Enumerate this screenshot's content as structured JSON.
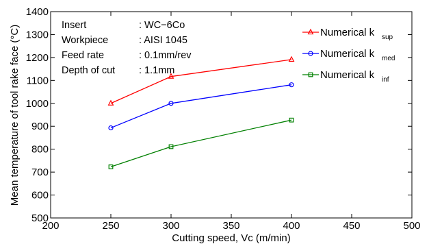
{
  "chart_data": {
    "type": "line",
    "title": "",
    "xlabel": "Cutting speed, Vc (m/min)",
    "ylabel": "Mean temperature of tool rake face (°C)",
    "xlim": [
      200,
      500
    ],
    "ylim": [
      500,
      1400
    ],
    "x_ticks": [
      200,
      250,
      300,
      350,
      400,
      450,
      500
    ],
    "y_ticks": [
      500,
      600,
      700,
      800,
      900,
      1000,
      1100,
      1200,
      1300,
      1400
    ],
    "grid": false,
    "legend_position": "top-right",
    "x": [
      250,
      300,
      400
    ],
    "series": [
      {
        "name_main": "Numerical k",
        "name_sub": "sup",
        "color": "#ff0000",
        "marker": "triangle",
        "values": [
          1000,
          1117,
          1191
        ]
      },
      {
        "name_main": "Numerical k",
        "name_sub": "med",
        "color": "#0000ff",
        "marker": "circle",
        "values": [
          893,
          1000,
          1081
        ]
      },
      {
        "name_main": "Numerical k",
        "name_sub": "inf",
        "color": "#008000",
        "marker": "square",
        "values": [
          723,
          811,
          927
        ]
      }
    ],
    "annotation": [
      {
        "label": "Insert",
        "value": ": WC−6Co"
      },
      {
        "label": "Workpiece",
        "value": ": AISI 1045"
      },
      {
        "label": "Feed rate",
        "value": ": 0.1mm/rev"
      },
      {
        "label": "Depth of cut",
        "value": ": 1.1mm"
      }
    ]
  }
}
